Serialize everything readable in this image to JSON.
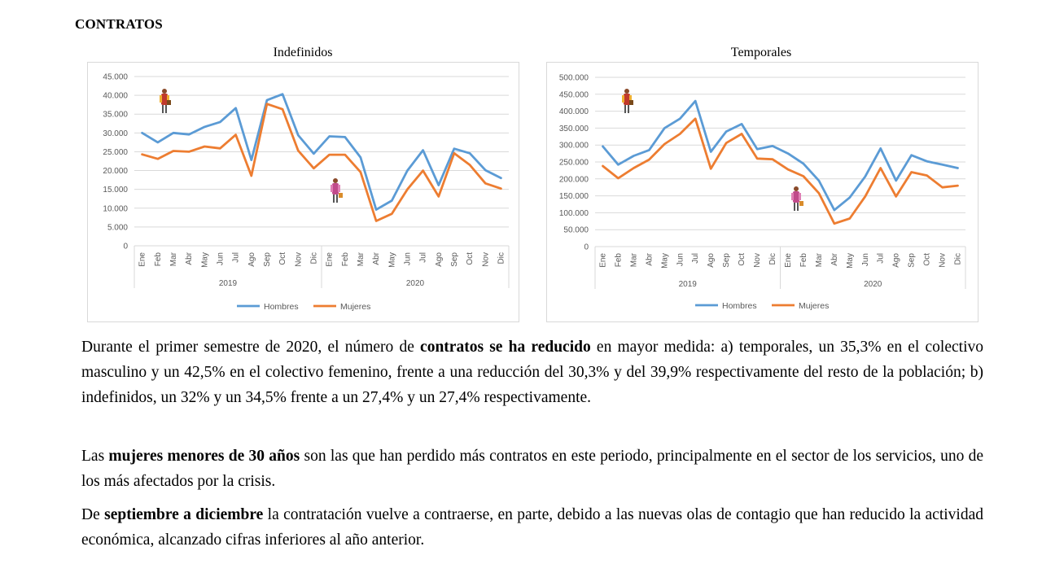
{
  "page": {
    "title": "CONTRATOS"
  },
  "legend": {
    "hombres": "Hombres",
    "mujeres": "Mujeres"
  },
  "colors": {
    "hombres": "#5b9bd5",
    "mujeres": "#ed7d31",
    "grid": "#d9d9d9"
  },
  "icons": [
    "male-figure-icon",
    "female-figure-icon"
  ],
  "chart_data": [
    {
      "type": "line",
      "title": "Indefinidos",
      "categories": [
        "Ene",
        "Feb",
        "Mar",
        "Abr",
        "May",
        "Jun",
        "Jul",
        "Ago",
        "Sep",
        "Oct",
        "Nov",
        "Dic",
        "Ene",
        "Feb",
        "Mar",
        "Abr",
        "May",
        "Jun",
        "Jul",
        "Ago",
        "Sep",
        "Oct",
        "Nov",
        "Dic"
      ],
      "year_groups": [
        "2019",
        "2020"
      ],
      "ylim": [
        0,
        45000
      ],
      "yticks": [
        0,
        5000,
        10000,
        15000,
        20000,
        25000,
        30000,
        35000,
        40000,
        45000
      ],
      "ytick_labels": [
        "0",
        "5.000",
        "10.000",
        "15.000",
        "20.000",
        "25.000",
        "30.000",
        "35.000",
        "40.000",
        "45.000"
      ],
      "grid": true,
      "legend_position": "bottom",
      "series": [
        {
          "name": "Hombres",
          "values": [
            30000,
            27500,
            30000,
            29600,
            31600,
            32900,
            36600,
            22800,
            38700,
            40300,
            29400,
            24500,
            29100,
            28900,
            23500,
            9600,
            12000,
            20000,
            25400,
            16100,
            25800,
            24600,
            20100,
            18000
          ]
        },
        {
          "name": "Mujeres",
          "values": [
            24300,
            23100,
            25200,
            25000,
            26400,
            25900,
            29500,
            18600,
            37700,
            36300,
            25300,
            20600,
            24200,
            24200,
            19600,
            6600,
            8500,
            15000,
            20000,
            13100,
            24600,
            21500,
            16600,
            15200
          ]
        }
      ]
    },
    {
      "type": "line",
      "title": "Temporales",
      "categories": [
        "Ene",
        "Feb",
        "Mar",
        "Abr",
        "May",
        "Jun",
        "Jul",
        "Ago",
        "Sep",
        "Oct",
        "Nov",
        "Dic",
        "Ene",
        "Feb",
        "Mar",
        "Abr",
        "May",
        "Jun",
        "Jul",
        "Ago",
        "Sep",
        "Oct",
        "Nov",
        "Dic"
      ],
      "year_groups": [
        "2019",
        "2020"
      ],
      "ylim": [
        0,
        500000
      ],
      "yticks": [
        0,
        50000,
        100000,
        150000,
        200000,
        250000,
        300000,
        350000,
        400000,
        450000,
        500000
      ],
      "ytick_labels": [
        "0",
        "50.000",
        "100.000",
        "150.000",
        "200.000",
        "250.000",
        "300.000",
        "350.000",
        "400.000",
        "450.000",
        "500.000"
      ],
      "grid": true,
      "legend_position": "bottom",
      "series": [
        {
          "name": "Hombres",
          "values": [
            296000,
            242000,
            268000,
            285000,
            350000,
            378000,
            430000,
            280000,
            340000,
            362000,
            288000,
            297000,
            275000,
            245000,
            195000,
            108000,
            145000,
            207000,
            290000,
            195000,
            270000,
            252000,
            242000,
            232000
          ]
        },
        {
          "name": "Mujeres",
          "values": [
            238000,
            202000,
            232000,
            257000,
            303000,
            333000,
            378000,
            230000,
            306000,
            333000,
            260000,
            258000,
            228000,
            208000,
            158000,
            68000,
            83000,
            148000,
            232000,
            148000,
            220000,
            210000,
            175000,
            180000
          ]
        }
      ]
    }
  ],
  "text": {
    "p1": {
      "a": "Durante el primer semestre de 2020, el número de ",
      "b": "contratos se ha reducido",
      "c": " en mayor medida: a) temporales, un 35,3% en el colectivo masculino y un 42,5% en el colectivo femenino, frente a una reducción del 30,3% y del 39,9% respectivamente del resto de la población; b) indefinidos, un 32% y un 34,5% frente a un 27,4% y un 27,4% respectivamente."
    },
    "p2": {
      "a": "Las ",
      "b": "mujeres menores de 30 años",
      "c": " son las que han perdido más contratos en este periodo, principalmente en el sector de los servicios, uno de los más afectados por la crisis."
    },
    "p3": {
      "a": "De ",
      "b": "septiembre a diciembre",
      "c": " la contratación vuelve a contraerse, en parte, debido a las nuevas olas de contagio que han reducido la actividad económica, alcanzado cifras inferiores al año anterior."
    }
  }
}
